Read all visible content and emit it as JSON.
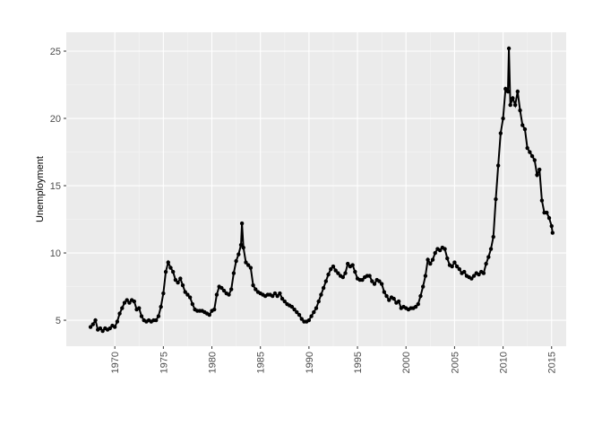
{
  "chart_data": {
    "type": "line",
    "y_label": "Unemployment",
    "color": "#000000",
    "grid": true,
    "x": [
      1967.5,
      1967.75,
      1968,
      1968.25,
      1968.5,
      1968.75,
      1969,
      1969.25,
      1969.5,
      1969.75,
      1970,
      1970.25,
      1970.5,
      1970.75,
      1971,
      1971.25,
      1971.5,
      1971.75,
      1972,
      1972.25,
      1972.5,
      1972.75,
      1973,
      1973.25,
      1973.5,
      1973.75,
      1974,
      1974.25,
      1974.5,
      1974.75,
      1975,
      1975.25,
      1975.5,
      1975.75,
      1976,
      1976.25,
      1976.5,
      1976.75,
      1977,
      1977.25,
      1977.5,
      1977.75,
      1978,
      1978.25,
      1978.5,
      1978.75,
      1979,
      1979.25,
      1979.5,
      1979.75,
      1980,
      1980.25,
      1980.5,
      1980.75,
      1981,
      1981.25,
      1981.5,
      1981.75,
      1982,
      1982.25,
      1982.5,
      1982.75,
      1983,
      1983.1,
      1983.25,
      1983.5,
      1983.75,
      1984,
      1984.25,
      1984.5,
      1984.75,
      1985,
      1985.25,
      1985.5,
      1985.75,
      1986,
      1986.25,
      1986.5,
      1986.75,
      1987,
      1987.25,
      1987.5,
      1987.75,
      1988,
      1988.25,
      1988.5,
      1988.75,
      1989,
      1989.25,
      1989.5,
      1989.75,
      1990,
      1990.25,
      1990.5,
      1990.75,
      1991,
      1991.25,
      1991.5,
      1991.75,
      1992,
      1992.25,
      1992.5,
      1992.75,
      1993,
      1993.25,
      1993.5,
      1993.75,
      1994,
      1994.25,
      1994.5,
      1994.75,
      1995,
      1995.25,
      1995.5,
      1995.75,
      1996,
      1996.25,
      1996.5,
      1996.75,
      1997,
      1997.25,
      1997.5,
      1997.75,
      1998,
      1998.25,
      1998.5,
      1998.75,
      1999,
      1999.25,
      1999.5,
      1999.75,
      2000,
      2000.25,
      2000.5,
      2000.75,
      2001,
      2001.25,
      2001.5,
      2001.75,
      2002,
      2002.25,
      2002.5,
      2002.75,
      2003,
      2003.25,
      2003.5,
      2003.75,
      2004,
      2004.25,
      2004.5,
      2004.75,
      2005,
      2005.25,
      2005.5,
      2005.75,
      2006,
      2006.25,
      2006.5,
      2006.75,
      2007,
      2007.25,
      2007.5,
      2007.75,
      2008,
      2008.25,
      2008.5,
      2008.75,
      2009,
      2009.25,
      2009.5,
      2009.75,
      2010,
      2010.25,
      2010.5,
      2010.6,
      2010.75,
      2011,
      2011.25,
      2011.5,
      2011.75,
      2012,
      2012.25,
      2012.5,
      2012.75,
      2013,
      2013.25,
      2013.5,
      2013.75,
      2014,
      2014.25,
      2014.5,
      2014.75,
      2015,
      2015.1
    ],
    "values": [
      4.5,
      4.7,
      5.0,
      4.3,
      4.4,
      4.2,
      4.4,
      4.3,
      4.4,
      4.6,
      4.5,
      4.9,
      5.5,
      5.9,
      6.3,
      6.5,
      6.3,
      6.5,
      6.4,
      5.8,
      5.9,
      5.3,
      5.0,
      4.9,
      5.0,
      4.9,
      5.0,
      5.0,
      5.3,
      6.0,
      7.0,
      8.6,
      9.3,
      8.9,
      8.6,
      8.0,
      7.8,
      8.1,
      7.6,
      7.1,
      6.9,
      6.7,
      6.2,
      5.8,
      5.7,
      5.7,
      5.7,
      5.6,
      5.5,
      5.4,
      5.7,
      5.8,
      6.9,
      7.5,
      7.4,
      7.2,
      7.0,
      6.9,
      7.3,
      8.5,
      9.4,
      9.9,
      10.6,
      12.2,
      10.4,
      9.3,
      9.1,
      8.9,
      7.6,
      7.3,
      7.1,
      7.0,
      6.9,
      6.8,
      6.9,
      6.9,
      6.8,
      7.0,
      6.8,
      7.0,
      6.6,
      6.4,
      6.2,
      6.1,
      6.0,
      5.8,
      5.6,
      5.4,
      5.1,
      4.9,
      4.9,
      5.0,
      5.3,
      5.6,
      5.9,
      6.4,
      6.9,
      7.4,
      7.9,
      8.4,
      8.8,
      9.0,
      8.7,
      8.5,
      8.3,
      8.2,
      8.5,
      9.2,
      9.0,
      9.1,
      8.6,
      8.1,
      8.0,
      8.0,
      8.2,
      8.3,
      8.3,
      7.9,
      7.7,
      8.0,
      7.9,
      7.7,
      7.1,
      6.8,
      6.5,
      6.7,
      6.6,
      6.3,
      6.4,
      5.9,
      6.0,
      5.9,
      5.8,
      5.9,
      5.9,
      6.0,
      6.2,
      6.8,
      7.5,
      8.3,
      9.5,
      9.2,
      9.5,
      10.0,
      10.3,
      10.2,
      10.4,
      10.3,
      9.6,
      9.1,
      9.0,
      9.3,
      9.0,
      8.8,
      8.5,
      8.6,
      8.3,
      8.2,
      8.1,
      8.3,
      8.5,
      8.4,
      8.6,
      8.5,
      9.2,
      9.7,
      10.3,
      11.2,
      14.0,
      16.5,
      18.9,
      20.0,
      22.2,
      22.0,
      25.2,
      21.0,
      21.5,
      21.0,
      22.0,
      20.6,
      19.5,
      19.2,
      17.8,
      17.5,
      17.2,
      16.9,
      15.8,
      16.2,
      13.9,
      13.0,
      13.0,
      12.6,
      12.0,
      11.5
    ],
    "xlim": [
      1965.0,
      2016.5
    ],
    "ylim": [
      3.07,
      26.4
    ],
    "xticks": [
      1970,
      1975,
      1980,
      1985,
      1990,
      1995,
      2000,
      2005,
      2010,
      2015
    ],
    "yticks": [
      5,
      10,
      15,
      20,
      25
    ]
  }
}
